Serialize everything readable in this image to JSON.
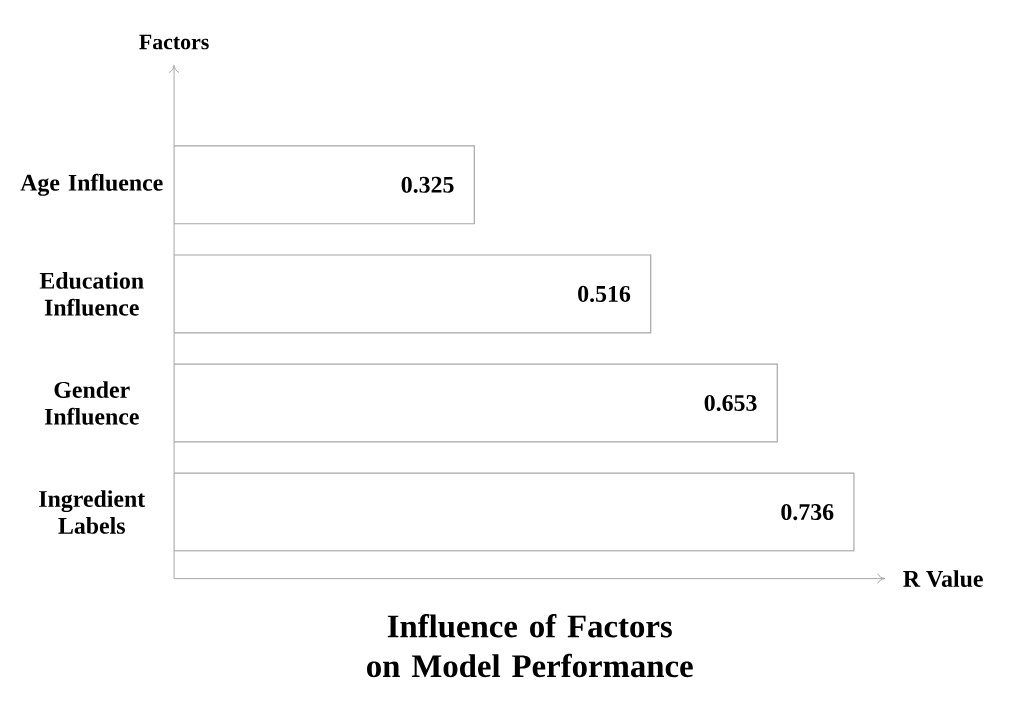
{
  "chart_data": {
    "type": "bar",
    "orientation": "horizontal",
    "title": "Influence of Factors on Model Performance",
    "xlabel": "R Value",
    "ylabel": "Factors",
    "categories": [
      "Age Influence",
      "Education Influence",
      "Gender Influence",
      "Ingredient Labels"
    ],
    "values": [
      0.325,
      0.516,
      0.653,
      0.736
    ],
    "color": "#ffffff",
    "data_labels": true,
    "xlim": [
      0,
      0.77
    ],
    "tick_labels": "y"
  }
}
